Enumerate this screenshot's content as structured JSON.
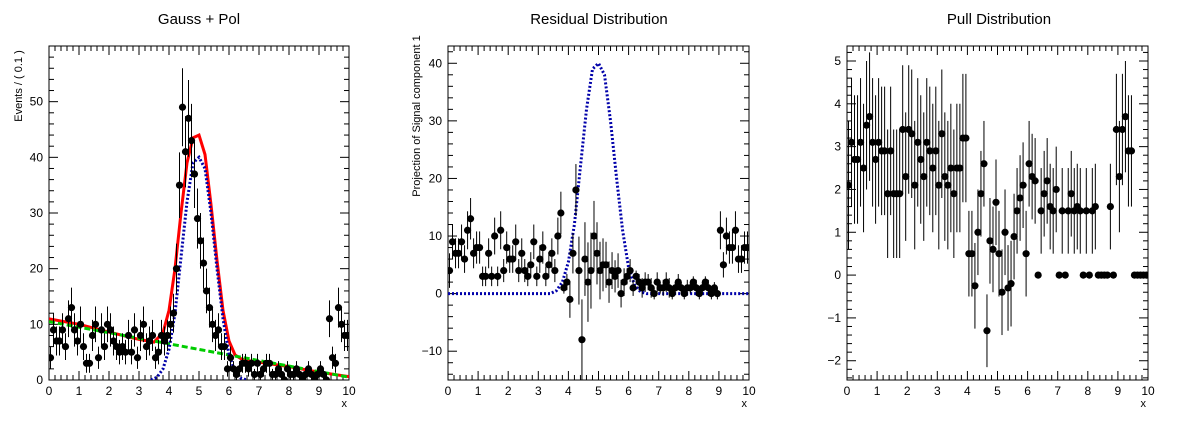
{
  "chart_data": [
    {
      "type": "scatter",
      "title": "Gauss + Pol",
      "xlabel": "x",
      "ylabel": "Events / ( 0.1 )",
      "xlim": [
        0,
        10
      ],
      "ylim": [
        0,
        60
      ],
      "xticks": [
        "0",
        "1",
        "2",
        "3",
        "4",
        "5",
        "6",
        "7",
        "8",
        "9",
        "10"
      ],
      "yticks": [
        "0",
        "10",
        "20",
        "30",
        "40",
        "50"
      ],
      "ytick_values": [
        0,
        10,
        20,
        30,
        40,
        50
      ],
      "data_points": {
        "x": [
          0.05,
          0.15,
          0.25,
          0.35,
          0.45,
          0.55,
          0.65,
          0.75,
          0.85,
          0.95,
          1.05,
          1.15,
          1.25,
          1.35,
          1.45,
          1.55,
          1.65,
          1.75,
          1.85,
          1.95,
          2.05,
          2.15,
          2.25,
          2.35,
          2.45,
          2.55,
          2.65,
          2.75,
          2.85,
          2.95,
          3.05,
          3.15,
          3.25,
          3.35,
          3.45,
          3.55,
          3.65,
          3.75,
          3.85,
          3.95,
          4.05,
          4.15,
          4.25,
          4.35,
          4.45,
          4.55,
          4.65,
          4.75,
          4.85,
          4.95,
          5.05,
          5.15,
          5.25,
          5.35,
          5.45,
          5.55,
          5.65,
          5.75,
          5.85,
          5.95,
          6.05,
          6.15,
          6.25,
          6.35,
          6.45,
          6.55,
          6.65,
          6.75,
          6.85,
          6.95,
          7.05,
          7.15,
          7.25,
          7.35,
          7.45,
          7.55,
          7.65,
          7.75,
          7.85,
          7.95,
          8.05,
          8.15,
          8.25,
          8.35,
          8.45,
          8.55,
          8.65,
          8.75,
          8.85,
          8.95,
          9.05,
          9.15,
          9.25,
          9.35,
          9.45,
          9.55,
          9.65,
          9.75,
          9.85,
          9.95
        ],
        "y": [
          4,
          9,
          7,
          7,
          9,
          6,
          11,
          13,
          9,
          7,
          10,
          6,
          3,
          3,
          8,
          10,
          4,
          9,
          6,
          10,
          9,
          7,
          6,
          5,
          6,
          5,
          8,
          5,
          9,
          4,
          8,
          10,
          6,
          7,
          8,
          4,
          5,
          8,
          7,
          8,
          10,
          12,
          20,
          35,
          49,
          41,
          47,
          43,
          37,
          29,
          25,
          21,
          16,
          13,
          10,
          8,
          9,
          6,
          6,
          2,
          4,
          2,
          1,
          2,
          3,
          3,
          2,
          3,
          1,
          3,
          1,
          2,
          3,
          3,
          1,
          1,
          2,
          1,
          0,
          2,
          1,
          1,
          2,
          1,
          0,
          1,
          2,
          1,
          0,
          1,
          2,
          1,
          0,
          11,
          4,
          3,
          13,
          10,
          8,
          8
        ],
        "errors": [
          2,
          3,
          2.6,
          2.6,
          3,
          2.4,
          3.3,
          3.6,
          3,
          2.6,
          3.2,
          2.4,
          1.7,
          1.7,
          2.8,
          3.2,
          2,
          3,
          2.4,
          3.2,
          3,
          2.6,
          2.4,
          2.2,
          2.4,
          2.2,
          2.8,
          2.2,
          3,
          2,
          2.8,
          3.2,
          2.4,
          2.6,
          2.8,
          2,
          2.2,
          2.8,
          2.6,
          2.8,
          3.2,
          3.5,
          4.5,
          5.9,
          7,
          6.4,
          6.9,
          6.6,
          6.1,
          5.4,
          5,
          4.6,
          4,
          3.6,
          3.2,
          2.8,
          3,
          2.4,
          2.4,
          1.4,
          2,
          1.4,
          1,
          1.4,
          1.7,
          1.7,
          1.4,
          1.7,
          1,
          1.7,
          1,
          1.4,
          1.7,
          1.7,
          1,
          1,
          1.4,
          1,
          1,
          1.4,
          1,
          1,
          1.4,
          1,
          1,
          1,
          1.4,
          1,
          1,
          1,
          1.4,
          1,
          1,
          3.3,
          2,
          1.7,
          3.6,
          3.2,
          2.8,
          2.8
        ]
      },
      "series": [
        {
          "name": "",
          "color": "#ff0000",
          "style": "solid",
          "x": [
            0,
            1,
            2,
            3,
            3.5,
            3.8,
            4,
            4.2,
            4.4,
            4.6,
            4.8,
            5,
            5.2,
            5.4,
            5.6,
            5.8,
            6,
            6.2,
            6.4,
            6.6,
            7,
            8,
            9,
            10
          ],
          "y": [
            11,
            10,
            8.6,
            7.3,
            6.8,
            8.5,
            12.5,
            20,
            30,
            39,
            43.5,
            44,
            40.5,
            31.5,
            21.5,
            12.5,
            7,
            4.5,
            3.8,
            3.5,
            3.2,
            2.4,
            1.4,
            0.6
          ]
        },
        {
          "name": "",
          "color": "#00cc00",
          "style": "dashed",
          "x": [
            0,
            10
          ],
          "y": [
            10.5,
            0.5
          ]
        },
        {
          "name": "",
          "color": "#0000aa",
          "style": "dotted",
          "x": [
            3.4,
            3.6,
            3.8,
            4,
            4.2,
            4.4,
            4.6,
            4.8,
            5,
            5.2,
            5.4,
            5.6,
            5.8,
            6,
            6.2,
            6.4,
            6.6
          ],
          "y": [
            0,
            0.5,
            2,
            5.5,
            12,
            22,
            32,
            39,
            40,
            38,
            30,
            20,
            11,
            4.5,
            1.5,
            0.3,
            0
          ]
        }
      ]
    },
    {
      "type": "scatter",
      "title": "Residual Distribution",
      "xlabel": "x",
      "ylabel": "Projection of Signal component 1",
      "xlim": [
        0,
        10
      ],
      "ylim": [
        -15,
        43
      ],
      "xticks": [
        "0",
        "1",
        "2",
        "3",
        "4",
        "5",
        "6",
        "7",
        "8",
        "9",
        "10"
      ],
      "yticks": [
        "−10",
        "0",
        "10",
        "20",
        "30",
        "40"
      ],
      "ytick_values": [
        -10,
        0,
        10,
        20,
        30,
        40
      ],
      "data_points": {
        "x": [
          0.05,
          0.15,
          0.25,
          0.35,
          0.45,
          0.55,
          0.65,
          0.75,
          0.85,
          0.95,
          1.05,
          1.15,
          1.25,
          1.35,
          1.45,
          1.55,
          1.65,
          1.75,
          1.85,
          1.95,
          2.05,
          2.15,
          2.25,
          2.35,
          2.45,
          2.55,
          2.65,
          2.75,
          2.85,
          2.95,
          3.05,
          3.15,
          3.25,
          3.35,
          3.45,
          3.55,
          3.65,
          3.75,
          3.85,
          3.95,
          4.05,
          4.15,
          4.25,
          4.35,
          4.45,
          4.55,
          4.65,
          4.75,
          4.85,
          4.95,
          5.05,
          5.15,
          5.25,
          5.35,
          5.45,
          5.55,
          5.65,
          5.75,
          5.85,
          5.95,
          6.05,
          6.15,
          6.25,
          6.35,
          6.45,
          6.55,
          6.65,
          6.75,
          6.85,
          6.95,
          7.05,
          7.15,
          7.25,
          7.35,
          7.45,
          7.55,
          7.65,
          7.75,
          7.85,
          7.95,
          8.05,
          8.15,
          8.25,
          8.35,
          8.45,
          8.55,
          8.65,
          8.75,
          8.85,
          8.95,
          9.05,
          9.15,
          9.25,
          9.35,
          9.45,
          9.55,
          9.65,
          9.75,
          9.85,
          9.95
        ],
        "y": [
          4,
          9,
          7,
          7,
          9,
          6,
          11,
          13,
          7,
          8,
          8,
          3,
          3,
          7,
          3,
          10,
          3,
          11,
          4,
          8,
          6,
          6,
          9,
          4,
          7,
          4,
          3,
          5,
          9,
          3,
          6,
          8,
          3,
          5,
          7,
          4,
          10,
          14,
          1,
          2,
          -1,
          7,
          18,
          4,
          -8,
          6,
          2,
          4,
          10,
          7,
          4,
          5,
          5,
          2,
          4,
          3,
          4,
          0,
          2,
          3,
          4,
          1,
          3,
          2,
          1,
          2,
          2,
          1,
          0,
          2,
          1,
          1,
          2,
          1,
          0,
          1,
          2,
          1,
          0,
          1,
          1,
          2,
          1,
          0,
          1,
          2,
          1,
          0,
          1,
          0,
          11,
          5,
          10,
          8,
          8,
          11,
          6,
          6,
          8,
          8
        ],
        "errors": [
          3,
          3,
          2.6,
          2.6,
          3,
          2.4,
          3.3,
          3.6,
          2.6,
          2.8,
          2.8,
          1.7,
          1.7,
          2.6,
          1.7,
          3.2,
          1.7,
          3.3,
          2,
          2.8,
          2.4,
          2.4,
          3,
          2,
          2.6,
          2,
          1.7,
          2.2,
          3,
          1.7,
          2.4,
          2.8,
          1.7,
          2.2,
          2.6,
          2,
          3.2,
          3.7,
          1,
          1.4,
          3.2,
          3.5,
          4.5,
          5.9,
          7,
          6.4,
          6.9,
          6.6,
          6.1,
          5.4,
          5,
          4.6,
          4,
          3.6,
          3.2,
          2.8,
          3,
          2.4,
          2.4,
          1.4,
          2,
          1.4,
          1,
          1.4,
          1.7,
          1.7,
          1.4,
          1.7,
          1,
          1.7,
          1,
          1.4,
          1.7,
          1.7,
          1,
          1,
          1.4,
          1,
          1,
          1.4,
          1,
          1,
          1.4,
          1,
          1,
          1,
          1.4,
          1,
          1,
          1,
          3.3,
          2.2,
          3.2,
          2.8,
          2.8,
          3.3,
          2.4,
          2.4,
          2.8,
          2.8
        ]
      },
      "series": [
        {
          "name": "",
          "color": "#0000aa",
          "style": "dotted",
          "x": [
            0,
            3,
            3.4,
            3.6,
            3.8,
            4,
            4.2,
            4.4,
            4.6,
            4.8,
            5,
            5.2,
            5.4,
            5.6,
            5.8,
            6,
            6.2,
            6.4,
            6.6,
            7,
            10
          ],
          "y": [
            0,
            0,
            0,
            0.5,
            2,
            5.5,
            12,
            22,
            32,
            39,
            40,
            38,
            30,
            20,
            11,
            4.5,
            1.5,
            0.3,
            0,
            0,
            0
          ]
        }
      ]
    },
    {
      "type": "scatter",
      "title": "Pull Distribution",
      "xlabel": "x",
      "ylabel": "",
      "xlim": [
        0,
        10
      ],
      "ylim": [
        -2.45,
        5.35
      ],
      "xticks": [
        "0",
        "1",
        "2",
        "3",
        "4",
        "5",
        "6",
        "7",
        "8",
        "9",
        "10"
      ],
      "yticks": [
        "−2",
        "−1",
        "0",
        "1",
        "2",
        "3",
        "4",
        "5"
      ],
      "ytick_values": [
        -2,
        -1,
        0,
        1,
        2,
        3,
        4,
        5
      ],
      "data_points": {
        "x": [
          0.05,
          0.15,
          0.25,
          0.35,
          0.45,
          0.55,
          0.65,
          0.75,
          0.85,
          0.95,
          1.05,
          1.15,
          1.25,
          1.35,
          1.45,
          1.55,
          1.65,
          1.75,
          1.85,
          1.95,
          2.05,
          2.15,
          2.25,
          2.35,
          2.45,
          2.55,
          2.65,
          2.75,
          2.85,
          2.95,
          3.05,
          3.15,
          3.25,
          3.35,
          3.45,
          3.55,
          3.65,
          3.75,
          3.85,
          3.95,
          4.05,
          4.15,
          4.25,
          4.35,
          4.45,
          4.55,
          4.65,
          4.75,
          4.85,
          4.95,
          5.05,
          5.15,
          5.25,
          5.35,
          5.45,
          5.55,
          5.65,
          5.75,
          5.85,
          5.95,
          6.05,
          6.15,
          6.25,
          6.35,
          6.45,
          6.55,
          6.65,
          6.75,
          6.85,
          6.95,
          7.05,
          7.15,
          7.25,
          7.35,
          7.45,
          7.55,
          7.65,
          7.75,
          7.85,
          7.95,
          8.05,
          8.15,
          8.25,
          8.35,
          8.45,
          8.55,
          8.65,
          8.75,
          8.85,
          8.95,
          9.05,
          9.15,
          9.25,
          9.35,
          9.45,
          9.55,
          9.65,
          9.75,
          9.85,
          9.95
        ],
        "y": [
          2.1,
          3.1,
          2.7,
          2.7,
          3.1,
          2.5,
          3.5,
          3.7,
          3.1,
          2.7,
          3.1,
          2.9,
          2.9,
          1.9,
          2.9,
          1.9,
          1.9,
          1.9,
          3.4,
          2.3,
          3.4,
          3.3,
          2.1,
          3.1,
          2.7,
          2.3,
          3.1,
          2.9,
          2.5,
          2.9,
          2.1,
          3.3,
          2.3,
          2.1,
          2.5,
          1.9,
          2.5,
          2.5,
          3.2,
          3.2,
          0.5,
          0.5,
          -0.25,
          1.0,
          1.9,
          2.6,
          -1.3,
          0.8,
          0.6,
          1.7,
          0.5,
          -0.4,
          1.0,
          -0.3,
          -0.2,
          0.9,
          1.5,
          1.8,
          2.1,
          0.5,
          2.6,
          2.3,
          2.2,
          0,
          1.5,
          1.9,
          2.2,
          1.6,
          1.5,
          2.0,
          0,
          1.5,
          0,
          1.5,
          1.9,
          1.5,
          1.6,
          1.5,
          0,
          1.5,
          0,
          1.5,
          1.6,
          0,
          0,
          0,
          0,
          1.6,
          0,
          3.4,
          2.3,
          3.4,
          3.7,
          2.9,
          2.9,
          0,
          0,
          0,
          0,
          0
        ],
        "errors": [
          1.5,
          1.5,
          1.5,
          1.5,
          1.5,
          1.5,
          1.5,
          1.5,
          1.5,
          1.5,
          1.5,
          1.5,
          1.5,
          1.5,
          1.5,
          1.5,
          1.5,
          1.5,
          1.5,
          1.5,
          1.5,
          1.5,
          1.5,
          1.5,
          1.5,
          1.5,
          1.5,
          1.5,
          1.5,
          1.5,
          1.5,
          1.5,
          1.5,
          1.5,
          1.5,
          1.5,
          1.5,
          1.5,
          1.5,
          1.5,
          1,
          1,
          1,
          1,
          1,
          1,
          0.85,
          1,
          1,
          1,
          1,
          1,
          1,
          1,
          1,
          1,
          1,
          1,
          1,
          1,
          1,
          1,
          1,
          0,
          1,
          1,
          1,
          1,
          1,
          1,
          0,
          1,
          0,
          1,
          1,
          1,
          1,
          1,
          0,
          1,
          0,
          1,
          1,
          0,
          0,
          0,
          0,
          1,
          0,
          1.3,
          1.3,
          1.3,
          1.3,
          1.3,
          1.3,
          0,
          0,
          0,
          0,
          0
        ]
      },
      "series": []
    }
  ]
}
